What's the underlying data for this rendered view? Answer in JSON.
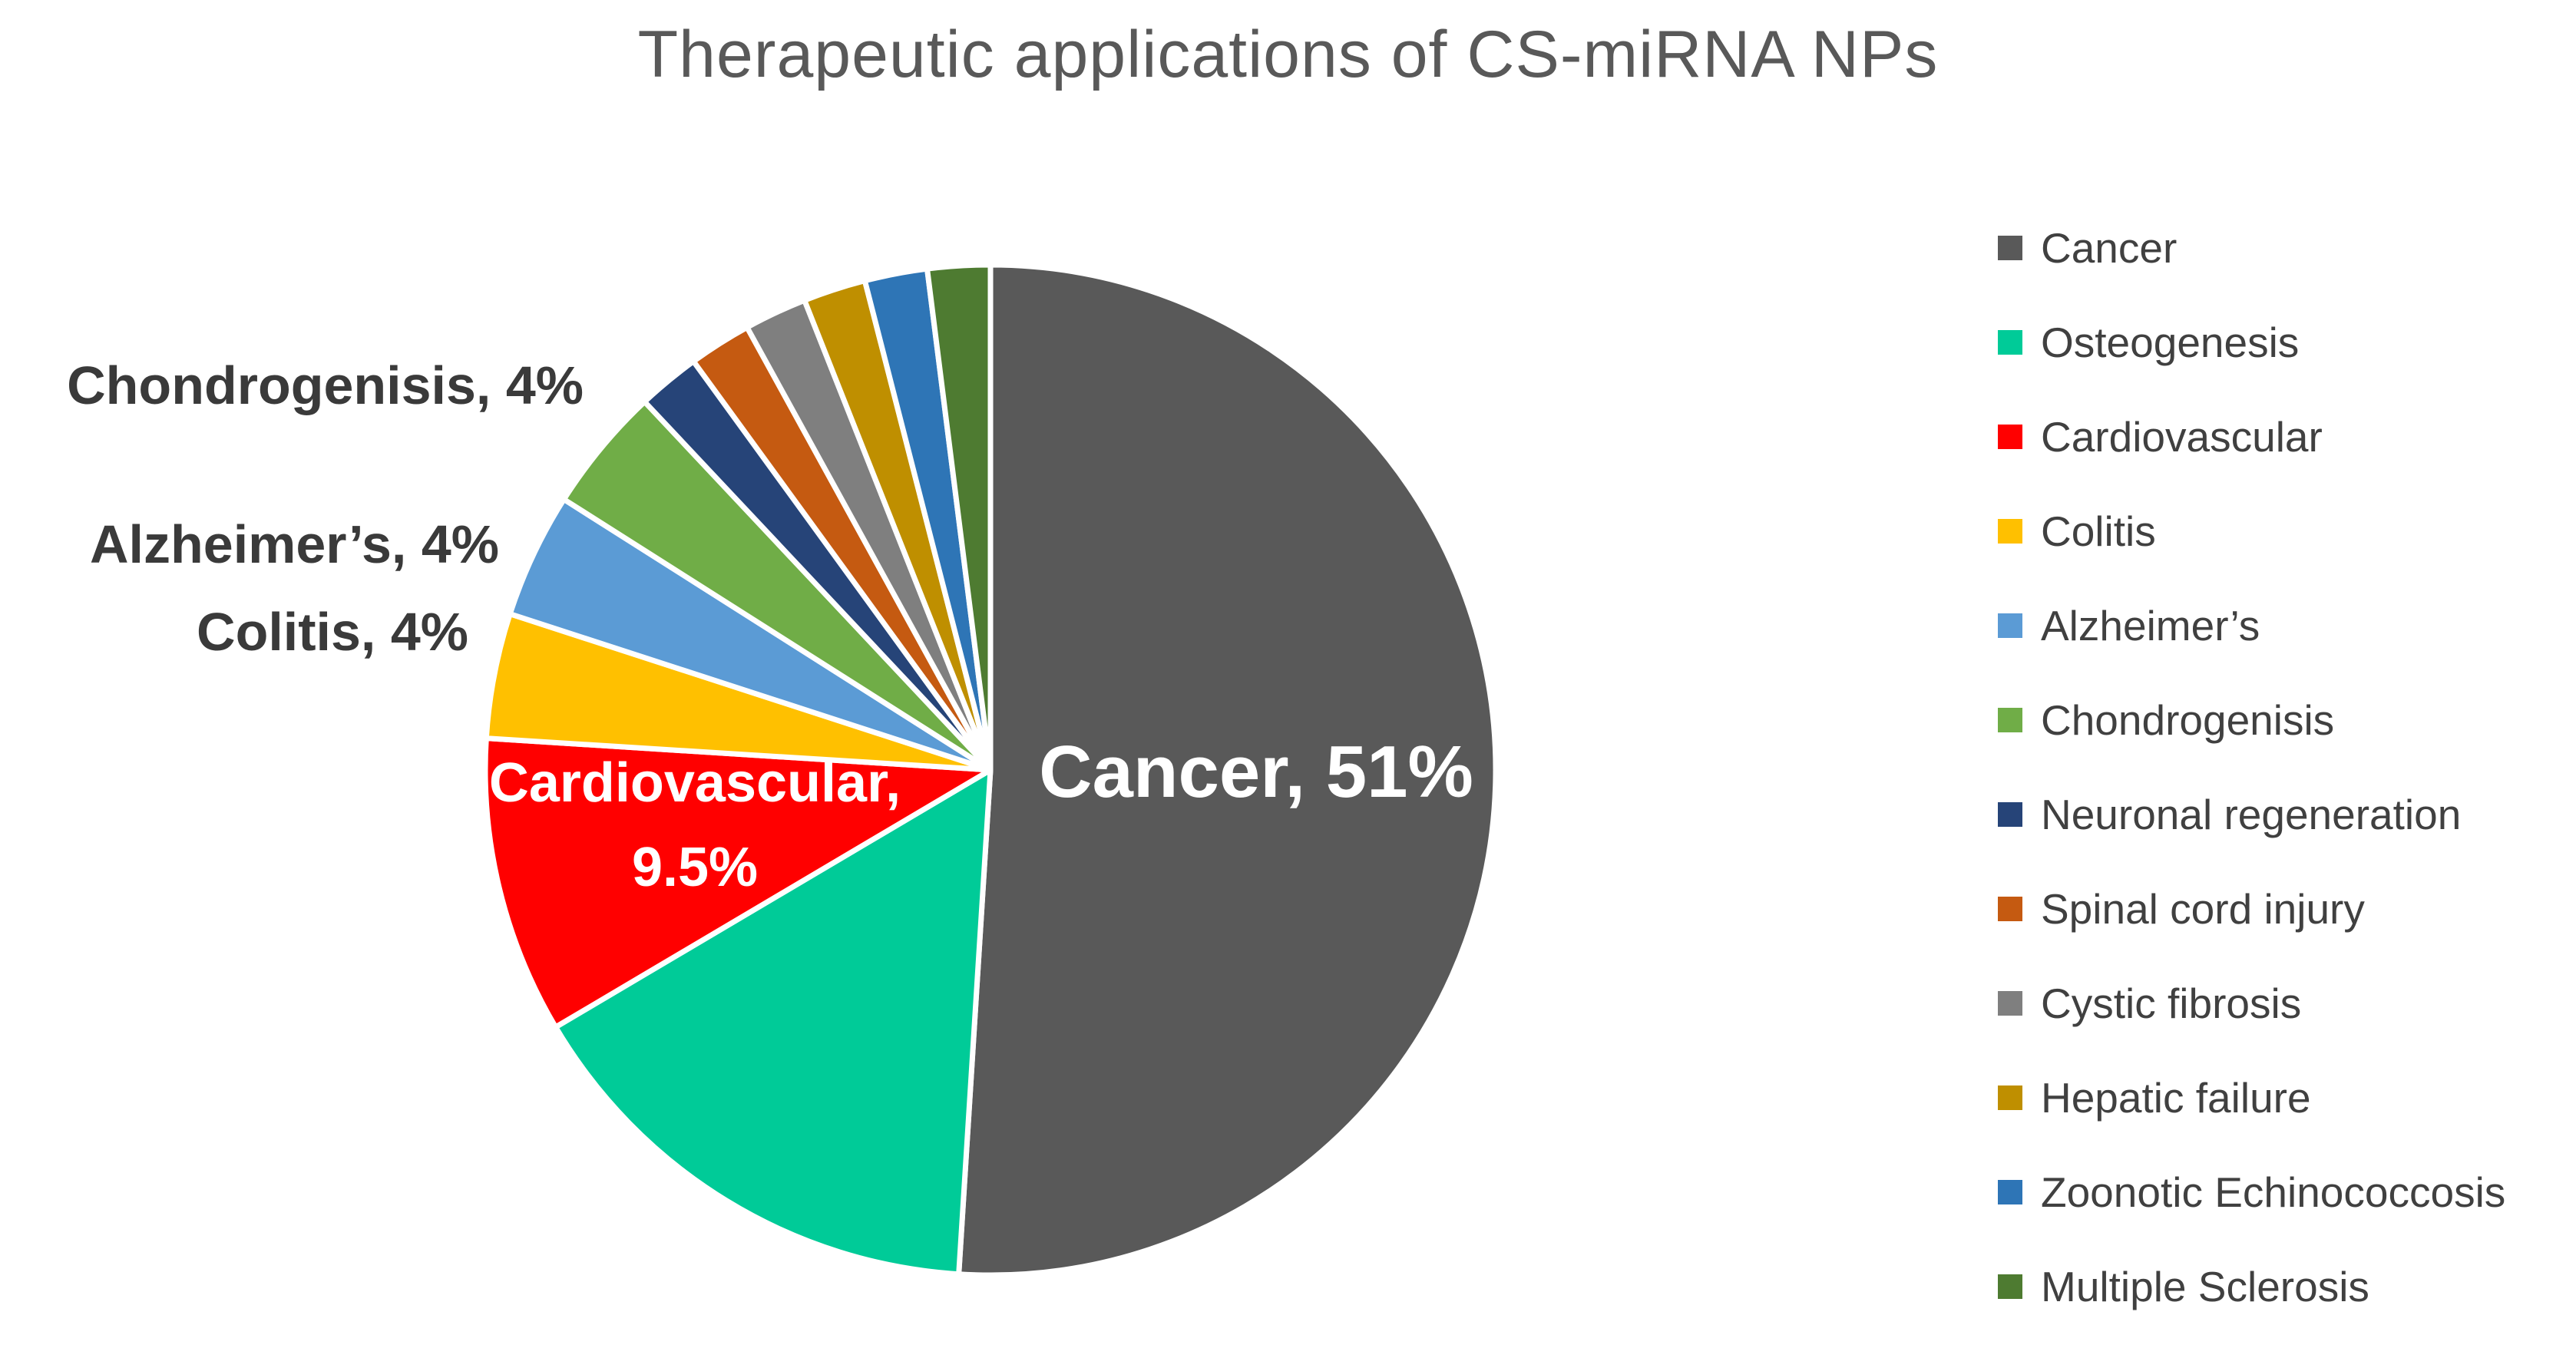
{
  "title": "Therapeutic applications of CS-miRNA NPs",
  "chart_data": {
    "type": "pie",
    "title": "Therapeutic applications of CS-miRNA NPs",
    "unit": "%",
    "start_angle": "top",
    "direction": "clockwise",
    "legend_position": "right",
    "categories": [
      "Cancer",
      "Osteogenesis",
      "Cardiovascular",
      "Colitis",
      "Alzheimer’s",
      "Chondrogenisis",
      "Neuronal regeneration",
      "Spinal cord injury",
      "Cystic fibrosis",
      "Hepatic failure",
      "Zoonotic Echinococcosis",
      "Multiple Sclerosis"
    ],
    "values": [
      51,
      15.5,
      9.5,
      4,
      4,
      4,
      2,
      2,
      2,
      2,
      2,
      2
    ],
    "colors": [
      "#595959",
      "#00CB98",
      "#FF0000",
      "#FFC000",
      "#5B9BD5",
      "#70AD47",
      "#264478",
      "#C55A11",
      "#7F7F7F",
      "#BF8F00",
      "#2E75B6",
      "#4E7B31"
    ],
    "data_labels_visible": [
      {
        "slice": "Cancer",
        "text": "Cancer, 51%",
        "placement": "inside"
      },
      {
        "slice": "Cardiovascular",
        "text": "Cardiovascular, 9.5%",
        "placement": "inside"
      },
      {
        "slice": "Colitis",
        "text": "Colitis, 4%",
        "placement": "outside"
      },
      {
        "slice": "Alzheimer’s",
        "text": "Alzheimer’s, 4%",
        "placement": "outside"
      },
      {
        "slice": "Chondrogenisis",
        "text": "Chondrogenisis, 4%",
        "placement": "outside"
      }
    ]
  },
  "labels": {
    "inside": {
      "cancer": "Cancer, 51%",
      "cardiovascular_line1": "Cardiovascular,",
      "cardiovascular_line2": "9.5%"
    },
    "outside": {
      "chondrogenisis": "Chondrogenisis, 4%",
      "alzheimers": "Alzheimer’s, 4%",
      "colitis": "Colitis, 4%"
    }
  },
  "style": {
    "slice_border_color": "#FFFFFF",
    "title_color": "#595959",
    "legend_text_color": "#404040",
    "outside_label_color": "#3A3A3A",
    "inside_label_color": "#FFFFFF"
  }
}
